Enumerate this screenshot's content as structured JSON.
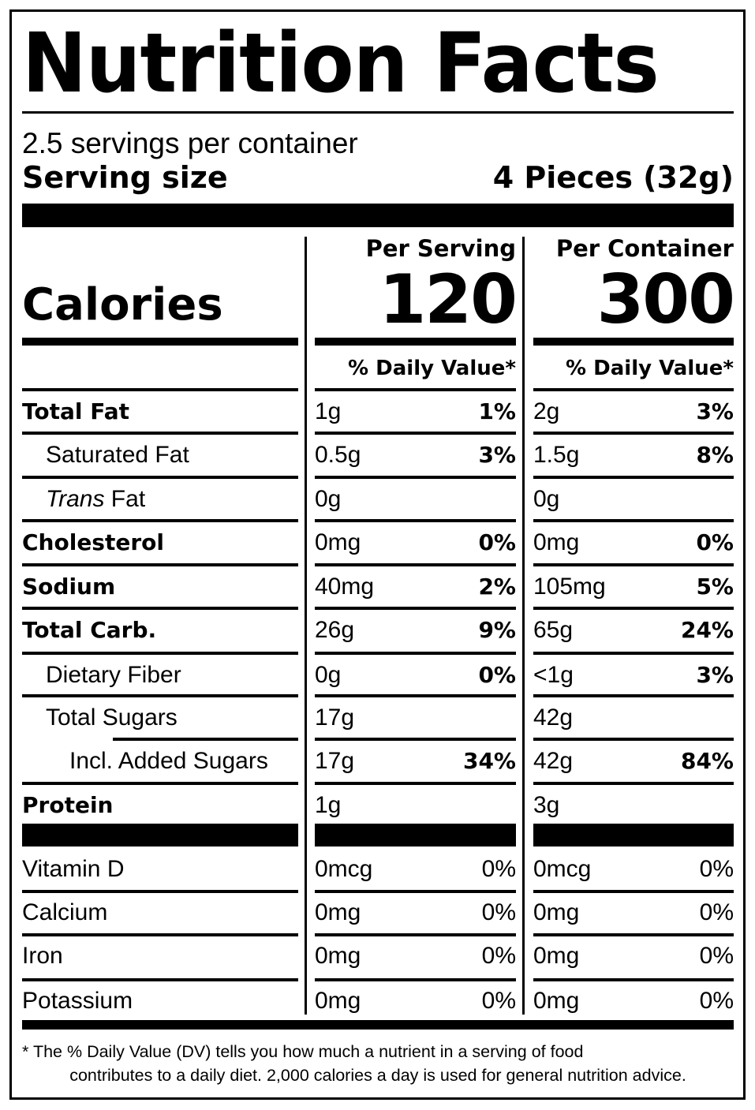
{
  "label": {
    "title": "Nutrition Facts",
    "servings_per_container": "2.5 servings per container",
    "serving_size_label": "Serving size",
    "serving_size_value": "4 Pieces (32g)",
    "calories_label": "Calories",
    "columns": [
      {
        "header": "Per Serving",
        "calories": "120",
        "dv_header": "% Daily Value*"
      },
      {
        "header": "Per Container",
        "calories": "300",
        "dv_header": "% Daily Value*"
      }
    ],
    "nutrients": [
      {
        "name": "Total Fat",
        "bold": true,
        "indent": 0,
        "serving_amount": "1g",
        "serving_dv": "1%",
        "container_amount": "2g",
        "container_dv": "3%"
      },
      {
        "name": "Saturated Fat",
        "bold": false,
        "indent": 1,
        "serving_amount": "0.5g",
        "serving_dv": "3%",
        "container_amount": "1.5g",
        "container_dv": "8%"
      },
      {
        "name_italic": "Trans",
        "name": " Fat",
        "bold": false,
        "indent": 1,
        "serving_amount": "0g",
        "serving_dv": "",
        "container_amount": "0g",
        "container_dv": ""
      },
      {
        "name": "Cholesterol",
        "bold": true,
        "indent": 0,
        "serving_amount": "0mg",
        "serving_dv": "0%",
        "container_amount": "0mg",
        "container_dv": "0%"
      },
      {
        "name": "Sodium",
        "bold": true,
        "indent": 0,
        "serving_amount": "40mg",
        "serving_dv": "2%",
        "container_amount": "105mg",
        "container_dv": "5%"
      },
      {
        "name": "Total Carb.",
        "bold": true,
        "indent": 0,
        "serving_amount": "26g",
        "serving_dv": "9%",
        "container_amount": "65g",
        "container_dv": "24%"
      },
      {
        "name": "Dietary Fiber",
        "bold": false,
        "indent": 1,
        "serving_amount": "0g",
        "serving_dv": "0%",
        "container_amount": "<1g",
        "container_dv": "3%"
      },
      {
        "name": "Total Sugars",
        "bold": false,
        "indent": 1,
        "serving_amount": "17g",
        "serving_dv": "",
        "container_amount": "42g",
        "container_dv": ""
      },
      {
        "name": "Incl. Added Sugars",
        "bold": false,
        "indent": 2,
        "serving_amount": "17g",
        "serving_dv": "34%",
        "container_amount": "42g",
        "container_dv": "84%"
      },
      {
        "name": "Protein",
        "bold": true,
        "indent": 0,
        "serving_amount": "1g",
        "serving_dv": "",
        "container_amount": "3g",
        "container_dv": ""
      }
    ],
    "vitamins": [
      {
        "name": "Vitamin D",
        "serving_amount": "0mcg",
        "serving_dv": "0%",
        "container_amount": "0mcg",
        "container_dv": "0%"
      },
      {
        "name": "Calcium",
        "serving_amount": "0mg",
        "serving_dv": "0%",
        "container_amount": "0mg",
        "container_dv": "0%"
      },
      {
        "name": "Iron",
        "serving_amount": "0mg",
        "serving_dv": "0%",
        "container_amount": "0mg",
        "container_dv": "0%"
      },
      {
        "name": "Potassium",
        "serving_amount": "0mg",
        "serving_dv": "0%",
        "container_amount": "0mg",
        "container_dv": "0%"
      }
    ],
    "footnote_line1": "* The % Daily Value (DV) tells you how much a nutrient in a serving of food",
    "footnote_line2": "contributes to a daily diet. 2,000 calories a day is used for general nutrition advice."
  }
}
